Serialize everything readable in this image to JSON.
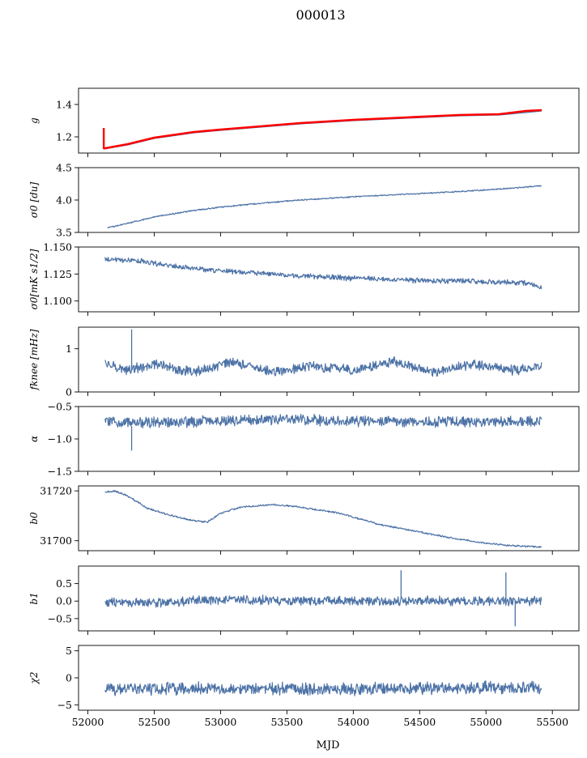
{
  "figure_title": "000013",
  "x_axis_label": "MJD",
  "x_ticks": [
    "52000",
    "52500",
    "53000",
    "53500",
    "54000",
    "54500",
    "55000",
    "55500"
  ],
  "colors": {
    "series": "#4c72a6",
    "highlight": "#ff0000",
    "axis": "#000000"
  },
  "chart_data": [
    {
      "type": "line",
      "ylabel": "g",
      "xlim": [
        51930,
        55700
      ],
      "ylim": [
        1.1,
        1.5
      ],
      "yticks": [
        1.2,
        1.4
      ],
      "ytick_labels": [
        "1.2",
        "1.4"
      ],
      "series": [
        {
          "name": "g",
          "color": "#4c72a6",
          "x": [
            52120,
            52300,
            52500,
            52800,
            53000,
            53300,
            53600,
            54000,
            54400,
            54800,
            55100,
            55300,
            55420
          ],
          "y": [
            1.125,
            1.15,
            1.19,
            1.225,
            1.24,
            1.26,
            1.28,
            1.3,
            1.315,
            1.33,
            1.335,
            1.35,
            1.36
          ]
        },
        {
          "name": "g_red",
          "color": "#ff0000",
          "x": [
            52120,
            52300,
            52500,
            52800,
            53000,
            53300,
            53600,
            54000,
            54400,
            54800,
            55100,
            55300,
            55420
          ],
          "y": [
            1.128,
            1.155,
            1.195,
            1.23,
            1.245,
            1.265,
            1.285,
            1.305,
            1.32,
            1.335,
            1.34,
            1.36,
            1.365
          ]
        }
      ],
      "annotations": [
        {
          "type": "spike",
          "x": 52120,
          "y_from": 1.125,
          "y_to": 1.255,
          "color": "#ff0000"
        }
      ]
    },
    {
      "type": "line",
      "ylabel": "σ0 [du]",
      "xlim": [
        51930,
        55700
      ],
      "ylim": [
        3.5,
        4.5
      ],
      "yticks": [
        3.5,
        4.0,
        4.5
      ],
      "ytick_labels": [
        "3.5",
        "4.0",
        "4.5"
      ],
      "series": [
        {
          "name": "sigma0_du",
          "color": "#4c72a6",
          "x": [
            52150,
            52300,
            52500,
            52800,
            53000,
            53300,
            53600,
            54000,
            54400,
            54800,
            55100,
            55300,
            55420
          ],
          "y": [
            3.57,
            3.64,
            3.74,
            3.84,
            3.89,
            3.95,
            4.0,
            4.05,
            4.09,
            4.13,
            4.17,
            4.2,
            4.22
          ],
          "noise": 0.01
        }
      ]
    },
    {
      "type": "line",
      "ylabel": "σ0[mK s1/2]",
      "xlim": [
        51930,
        55700
      ],
      "ylim": [
        1.09,
        1.15
      ],
      "yticks": [
        1.1,
        1.125,
        1.15
      ],
      "ytick_labels": [
        "1.100",
        "1.125",
        "1.150"
      ],
      "series": [
        {
          "name": "sigma0_mK",
          "color": "#4c72a6",
          "x": [
            52130,
            52400,
            52700,
            53000,
            53500,
            54000,
            54500,
            55000,
            55300,
            55420
          ],
          "y": [
            1.139,
            1.137,
            1.131,
            1.128,
            1.124,
            1.121,
            1.119,
            1.118,
            1.117,
            1.112
          ],
          "noise": 0.0025
        }
      ]
    },
    {
      "type": "line",
      "ylabel": "fknee [mHz]",
      "xlim": [
        51930,
        55700
      ],
      "ylim": [
        0,
        1.5
      ],
      "yticks": [
        0,
        1
      ],
      "ytick_labels": [
        "0",
        "1"
      ],
      "series": [
        {
          "name": "fknee",
          "color": "#4c72a6",
          "x": [
            52130,
            52300,
            52500,
            52800,
            53100,
            53400,
            53700,
            54000,
            54300,
            54600,
            54900,
            55200,
            55420
          ],
          "y": [
            0.7,
            0.5,
            0.65,
            0.45,
            0.7,
            0.45,
            0.6,
            0.5,
            0.7,
            0.45,
            0.65,
            0.5,
            0.6
          ],
          "noise": 0.12
        }
      ],
      "annotations": [
        {
          "type": "spike",
          "x": 52330,
          "y_from": 0.5,
          "y_to": 1.45,
          "color": "#4c72a6"
        }
      ]
    },
    {
      "type": "line",
      "ylabel": "α",
      "xlim": [
        51930,
        55700
      ],
      "ylim": [
        -1.5,
        -0.5
      ],
      "yticks": [
        -1.5,
        -1.0,
        -0.5
      ],
      "ytick_labels": [
        "−1.5",
        "−1.0",
        "−0.5"
      ],
      "series": [
        {
          "name": "alpha",
          "color": "#4c72a6",
          "x": [
            52130,
            52500,
            53000,
            53500,
            54000,
            54500,
            55000,
            55420
          ],
          "y": [
            -0.73,
            -0.75,
            -0.72,
            -0.7,
            -0.72,
            -0.74,
            -0.73,
            -0.72
          ],
          "noise": 0.09
        }
      ],
      "annotations": [
        {
          "type": "spike",
          "x": 52330,
          "y_from": -0.8,
          "y_to": -1.18,
          "color": "#4c72a6"
        }
      ]
    },
    {
      "type": "line",
      "ylabel": "b0",
      "xlim": [
        51930,
        55700
      ],
      "ylim": [
        31696,
        31722
      ],
      "yticks": [
        31700,
        31720
      ],
      "ytick_labels": [
        "31700",
        "31720"
      ],
      "series": [
        {
          "name": "b0",
          "color": "#4c72a6",
          "x": [
            52130,
            52200,
            52300,
            52450,
            52600,
            52800,
            52900,
            53000,
            53150,
            53400,
            53600,
            53900,
            54200,
            54500,
            54750,
            55000,
            55200,
            55420
          ],
          "y": [
            31719.5,
            31720,
            31718,
            31713,
            31710.5,
            31708,
            31707.5,
            31711,
            31713.5,
            31714.5,
            31713.5,
            31711,
            31706.5,
            31703.5,
            31701,
            31699,
            31698,
            31697.5
          ],
          "noise": 0.35
        }
      ]
    },
    {
      "type": "line",
      "ylabel": "b1",
      "xlim": [
        51930,
        55700
      ],
      "ylim": [
        -0.85,
        1.0
      ],
      "yticks": [
        -0.5,
        0.0,
        0.5
      ],
      "ytick_labels": [
        "−0.5",
        "0.0",
        "0.5"
      ],
      "series": [
        {
          "name": "b1",
          "color": "#4c72a6",
          "x": [
            52130,
            52500,
            53000,
            53500,
            54000,
            54500,
            55000,
            55420
          ],
          "y": [
            -0.05,
            -0.05,
            0.05,
            0.02,
            0.0,
            0.0,
            0.0,
            0.0
          ],
          "noise": 0.14
        }
      ],
      "annotations": [
        {
          "type": "spike",
          "x": 54360,
          "y_from": 0.1,
          "y_to": 0.88,
          "color": "#4c72a6"
        },
        {
          "type": "spike",
          "x": 55150,
          "y_from": 0.0,
          "y_to": 0.82,
          "color": "#4c72a6"
        },
        {
          "type": "spike",
          "x": 55220,
          "y_from": 0.0,
          "y_to": -0.72,
          "color": "#4c72a6"
        }
      ]
    },
    {
      "type": "line",
      "ylabel": "χ2",
      "xlim": [
        51930,
        55700
      ],
      "ylim": [
        -6,
        6
      ],
      "yticks": [
        -5,
        0,
        5
      ],
      "ytick_labels": [
        "−5",
        "0",
        "5"
      ],
      "series": [
        {
          "name": "chi2",
          "color": "#4c72a6",
          "x": [
            52130,
            52500,
            53000,
            53500,
            54000,
            54500,
            55000,
            55420
          ],
          "y": [
            -2.3,
            -2.0,
            -2.0,
            -2.0,
            -2.1,
            -2.0,
            -1.8,
            -1.8
          ],
          "noise": 1.2
        }
      ]
    }
  ]
}
